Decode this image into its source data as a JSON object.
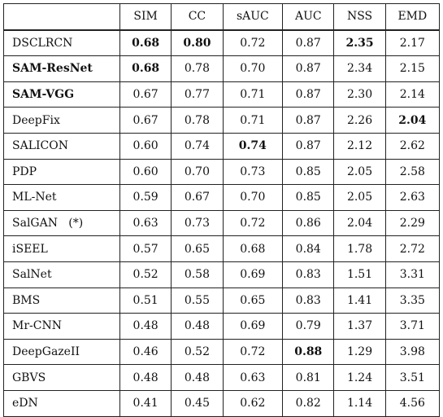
{
  "table": {
    "columns": [
      "",
      "SIM",
      "CC",
      "sAUC",
      "AUC",
      "NSS",
      "EMD"
    ],
    "rows": [
      {
        "name": "DSCLRCN",
        "name_bold": false,
        "values": [
          "0.68",
          "0.80",
          "0.72",
          "0.87",
          "2.35",
          "2.17"
        ],
        "bold": [
          true,
          true,
          false,
          false,
          true,
          false
        ]
      },
      {
        "name": "SAM-ResNet",
        "name_bold": true,
        "values": [
          "0.68",
          "0.78",
          "0.70",
          "0.87",
          "2.34",
          "2.15"
        ],
        "bold": [
          true,
          false,
          false,
          false,
          false,
          false
        ]
      },
      {
        "name": "SAM-VGG",
        "name_bold": true,
        "values": [
          "0.67",
          "0.77",
          "0.71",
          "0.87",
          "2.30",
          "2.14"
        ],
        "bold": [
          false,
          false,
          false,
          false,
          false,
          false
        ]
      },
      {
        "name": "DeepFix",
        "name_bold": false,
        "values": [
          "0.67",
          "0.78",
          "0.71",
          "0.87",
          "2.26",
          "2.04"
        ],
        "bold": [
          false,
          false,
          false,
          false,
          false,
          true
        ]
      },
      {
        "name": "SALICON",
        "name_bold": false,
        "values": [
          "0.60",
          "0.74",
          "0.74",
          "0.87",
          "2.12",
          "2.62"
        ],
        "bold": [
          false,
          false,
          true,
          false,
          false,
          false
        ]
      },
      {
        "name": "PDP",
        "name_bold": false,
        "values": [
          "0.60",
          "0.70",
          "0.73",
          "0.85",
          "2.05",
          "2.58"
        ],
        "bold": [
          false,
          false,
          false,
          false,
          false,
          false
        ]
      },
      {
        "name": "ML-Net",
        "name_bold": false,
        "values": [
          "0.59",
          "0.67",
          "0.70",
          "0.85",
          "2.05",
          "2.63"
        ],
        "bold": [
          false,
          false,
          false,
          false,
          false,
          false
        ]
      },
      {
        "name": "SalGAN   (*)",
        "name_bold": false,
        "values": [
          "0.63",
          "0.73",
          "0.72",
          "0.86",
          "2.04",
          "2.29"
        ],
        "bold": [
          false,
          false,
          false,
          false,
          false,
          false
        ]
      },
      {
        "name": "iSEEL",
        "name_bold": false,
        "values": [
          "0.57",
          "0.65",
          "0.68",
          "0.84",
          "1.78",
          "2.72"
        ],
        "bold": [
          false,
          false,
          false,
          false,
          false,
          false
        ]
      },
      {
        "name": "SalNet",
        "name_bold": false,
        "values": [
          "0.52",
          "0.58",
          "0.69",
          "0.83",
          "1.51",
          "3.31"
        ],
        "bold": [
          false,
          false,
          false,
          false,
          false,
          false
        ]
      },
      {
        "name": "BMS",
        "name_bold": false,
        "values": [
          "0.51",
          "0.55",
          "0.65",
          "0.83",
          "1.41",
          "3.35"
        ],
        "bold": [
          false,
          false,
          false,
          false,
          false,
          false
        ]
      },
      {
        "name": "Mr-CNN",
        "name_bold": false,
        "values": [
          "0.48",
          "0.48",
          "0.69",
          "0.79",
          "1.37",
          "3.71"
        ],
        "bold": [
          false,
          false,
          false,
          false,
          false,
          false
        ]
      },
      {
        "name": "DeepGazeII",
        "name_bold": false,
        "values": [
          "0.46",
          "0.52",
          "0.72",
          "0.88",
          "1.29",
          "3.98"
        ],
        "bold": [
          false,
          false,
          false,
          true,
          false,
          false
        ]
      },
      {
        "name": "GBVS",
        "name_bold": false,
        "values": [
          "0.48",
          "0.48",
          "0.63",
          "0.81",
          "1.24",
          "3.51"
        ],
        "bold": [
          false,
          false,
          false,
          false,
          false,
          false
        ]
      },
      {
        "name": "eDN",
        "name_bold": false,
        "values": [
          "0.41",
          "0.45",
          "0.62",
          "0.82",
          "1.14",
          "4.56"
        ],
        "bold": [
          false,
          false,
          false,
          false,
          false,
          false
        ]
      }
    ]
  }
}
